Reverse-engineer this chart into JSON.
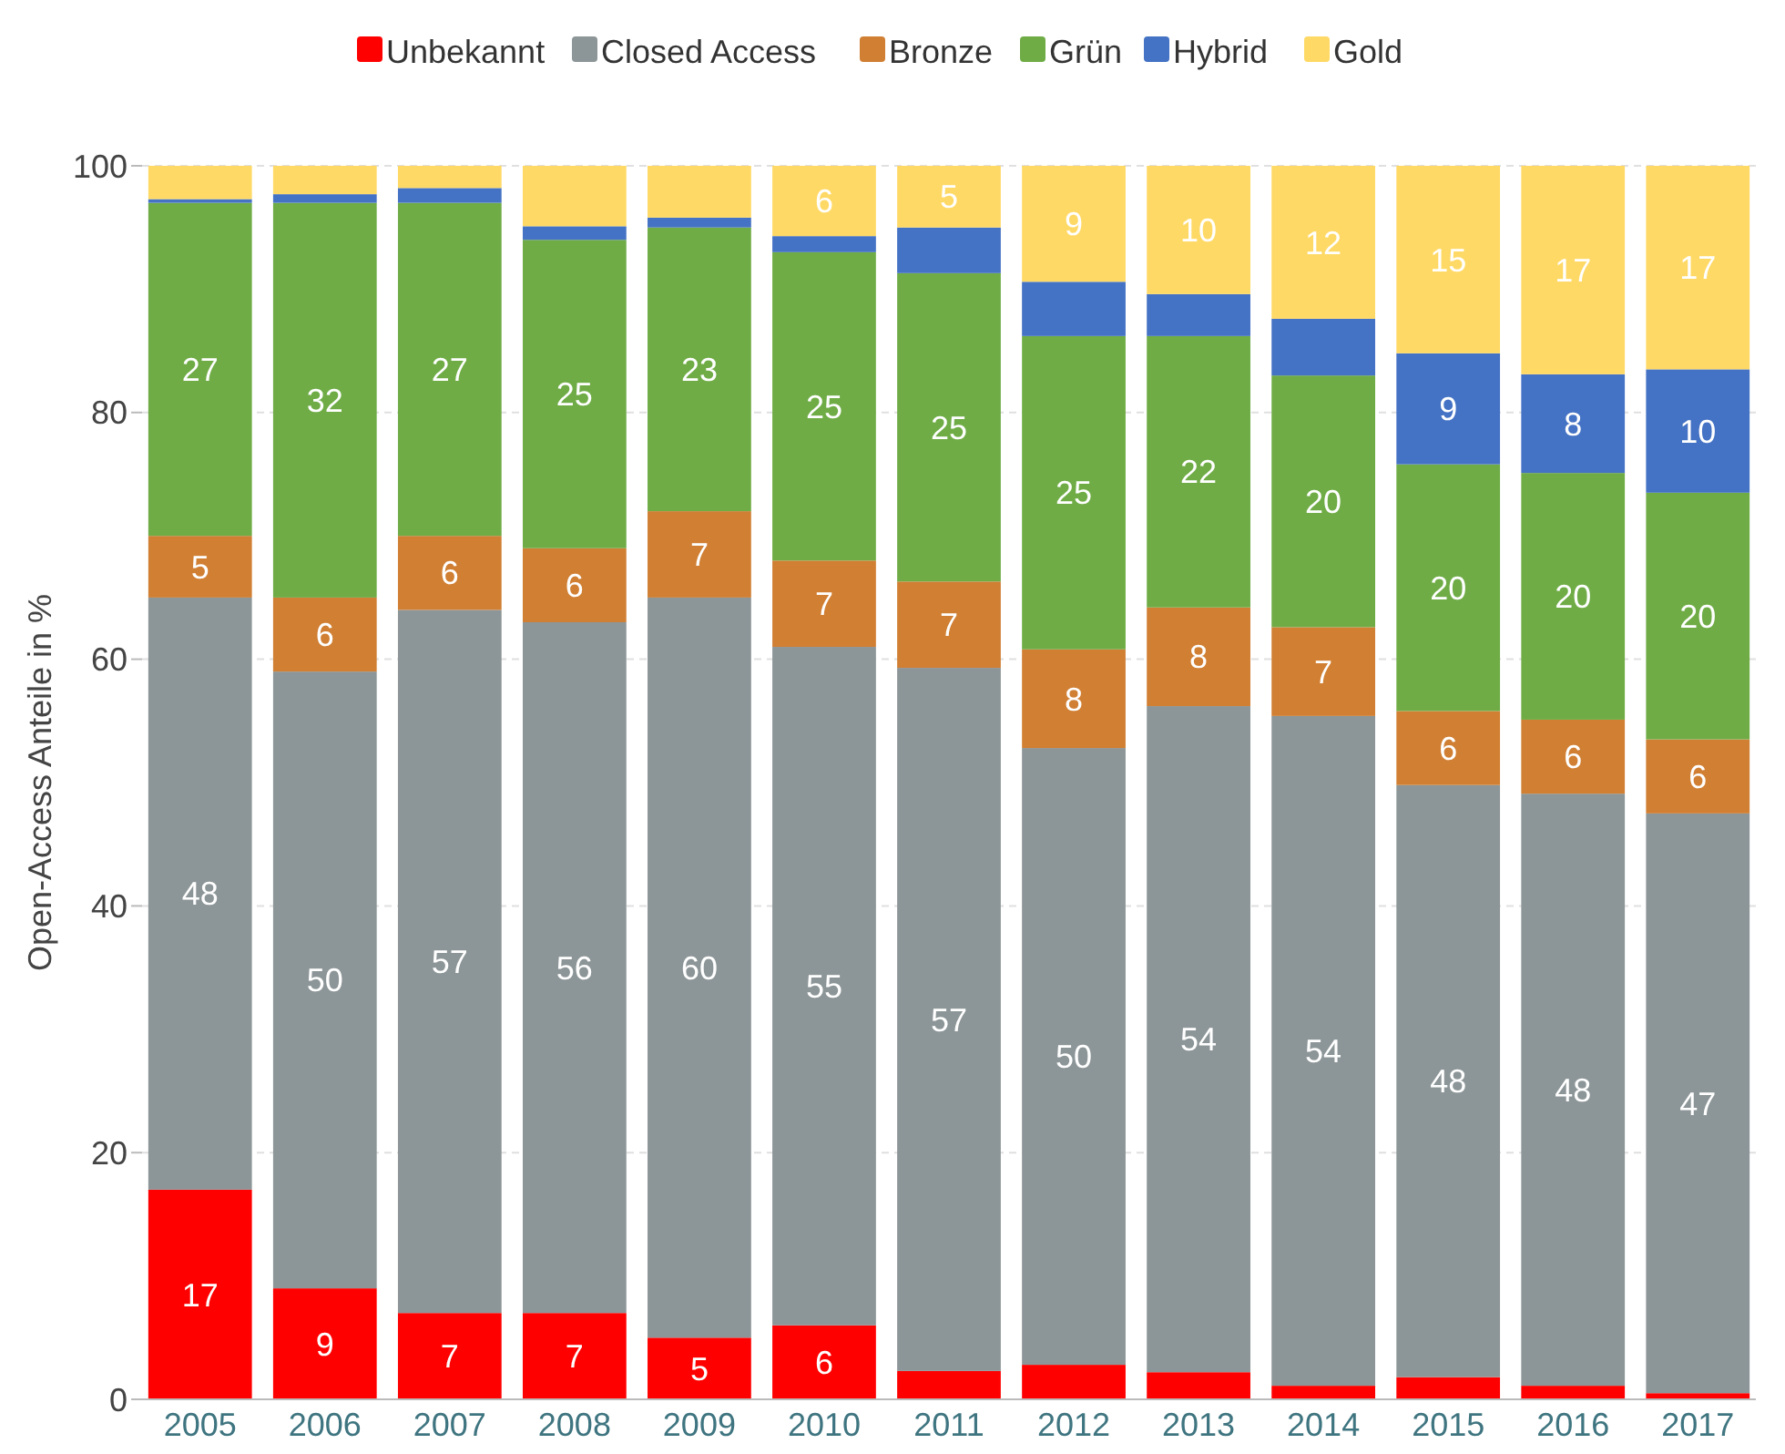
{
  "chart_data": {
    "type": "bar",
    "stacked": true,
    "ylabel": "Open-Access Anteile in %",
    "categories": [
      "2005",
      "2006",
      "2007",
      "2008",
      "2009",
      "2010",
      "2011",
      "2012",
      "2013",
      "2014",
      "2015",
      "2016",
      "2017"
    ],
    "ylim": [
      0,
      100
    ],
    "yticks": [
      0,
      20,
      40,
      60,
      80,
      100
    ],
    "grid": "y",
    "legend": "top",
    "series": [
      {
        "name": "Unbekannt",
        "color": "#ff0000",
        "values": [
          17,
          9,
          7,
          7,
          5,
          6,
          2.3,
          2.8,
          2.2,
          1.1,
          1.8,
          1.1,
          0.5
        ],
        "value_labels": [
          "17",
          "9",
          "7",
          "7",
          "5",
          "6",
          null,
          null,
          null,
          null,
          null,
          null,
          null
        ]
      },
      {
        "name": "Closed Access",
        "color": "#8c9597",
        "values": [
          48,
          50,
          57,
          56,
          60,
          55,
          57,
          50,
          54,
          54.3,
          48,
          48,
          47
        ],
        "value_labels": [
          "48",
          "50",
          "57",
          "56",
          "60",
          "55",
          "57",
          "50",
          "54",
          "54",
          "48",
          "48",
          "47"
        ]
      },
      {
        "name": "Bronze",
        "color": "#d07f33",
        "values": [
          5,
          6,
          6,
          6,
          7,
          7,
          7,
          8,
          8,
          7.2,
          6,
          6,
          6
        ],
        "value_labels": [
          "5",
          "6",
          "6",
          "6",
          "7",
          "7",
          "7",
          "8",
          "8",
          "7",
          "6",
          "6",
          "6"
        ]
      },
      {
        "name": "Grün",
        "color": "#6fac46",
        "values": [
          27,
          32,
          27,
          25,
          23,
          25,
          25,
          25.4,
          22,
          20.4,
          20,
          20,
          20
        ],
        "value_labels": [
          "27",
          "32",
          "27",
          "25",
          "23",
          "25",
          "25",
          "25",
          "22",
          "20",
          "20",
          "20",
          "20"
        ]
      },
      {
        "name": "Hybrid",
        "color": "#4472c4",
        "values": [
          0.3,
          0.7,
          1.2,
          1.1,
          0.8,
          1.3,
          3.7,
          4.4,
          3.4,
          4.6,
          9,
          8,
          10
        ],
        "value_labels": [
          null,
          null,
          null,
          null,
          null,
          null,
          null,
          null,
          null,
          null,
          "9",
          "8",
          "10"
        ]
      },
      {
        "name": "Gold",
        "color": "#ffd966",
        "values": [
          2.7,
          2.3,
          1.8,
          4.9,
          4.2,
          5.7,
          5,
          9.4,
          10.4,
          12.4,
          15.2,
          16.9,
          16.5
        ],
        "value_labels": [
          null,
          null,
          null,
          null,
          null,
          "6",
          "5",
          "9",
          "10",
          "12",
          "15",
          "17",
          "17"
        ]
      }
    ]
  }
}
